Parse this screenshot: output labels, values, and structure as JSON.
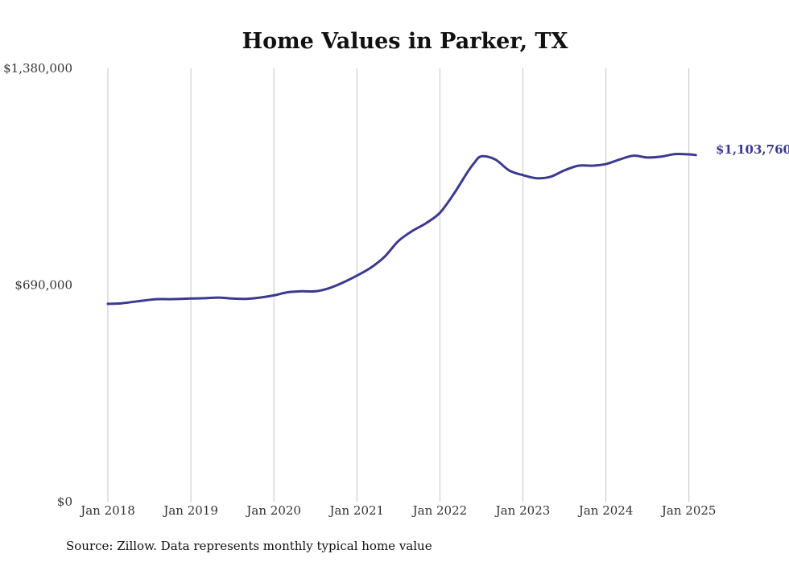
{
  "chart_data": {
    "type": "line",
    "title": "Home Values in Parker, TX",
    "xlabel": "",
    "ylabel": "",
    "ylim": [
      0,
      1380000
    ],
    "y_ticks": [
      "$1,380,000",
      "$690,000",
      "$0"
    ],
    "y_tick_values": [
      1380000,
      690000,
      0
    ],
    "x_tick_labels": [
      "Jan 2018",
      "Jan 2019",
      "Jan 2020",
      "Jan 2021",
      "Jan 2022",
      "Jan 2023",
      "Jan 2024",
      "Jan 2025"
    ],
    "x_tick_dates": [
      "2018-01",
      "2019-01",
      "2020-01",
      "2021-01",
      "2022-01",
      "2023-01",
      "2024-01",
      "2025-01"
    ],
    "x_range": [
      "2018-01",
      "2025-02"
    ],
    "grid": {
      "vertical": true,
      "horizontal": false
    },
    "legend": "none",
    "line_color": "#3b3a8f",
    "end_label": "$1,103,760",
    "series": [
      {
        "x": [
          "2018-01",
          "2018-03",
          "2018-06",
          "2018-08",
          "2018-10",
          "2019-01",
          "2019-03",
          "2019-05",
          "2019-07",
          "2019-09",
          "2019-11",
          "2020-01",
          "2020-03",
          "2020-05",
          "2020-07",
          "2020-09",
          "2020-11",
          "2021-01",
          "2021-03",
          "2021-05",
          "2021-07",
          "2021-09",
          "2021-11",
          "2022-01",
          "2022-03",
          "2022-05",
          "2022-06",
          "2022-07",
          "2022-09",
          "2022-11",
          "2023-01",
          "2023-03",
          "2023-05",
          "2023-07",
          "2023-09",
          "2023-11",
          "2024-01",
          "2024-03",
          "2024-05",
          "2024-07",
          "2024-09",
          "2024-11",
          "2025-01",
          "2025-02"
        ],
        "values": [
          630000,
          632000,
          640000,
          645000,
          645000,
          647000,
          648000,
          650000,
          647000,
          646000,
          650000,
          657000,
          667000,
          670000,
          670000,
          680000,
          698000,
          720000,
          745000,
          780000,
          830000,
          862000,
          887000,
          920000,
          980000,
          1050000,
          1080000,
          1100000,
          1090000,
          1055000,
          1040000,
          1030000,
          1035000,
          1055000,
          1070000,
          1070000,
          1075000,
          1090000,
          1102000,
          1096000,
          1099000,
          1107000,
          1106000,
          1103760
        ]
      }
    ]
  },
  "source_text": "Source: Zillow. Data represents monthly typical home value"
}
